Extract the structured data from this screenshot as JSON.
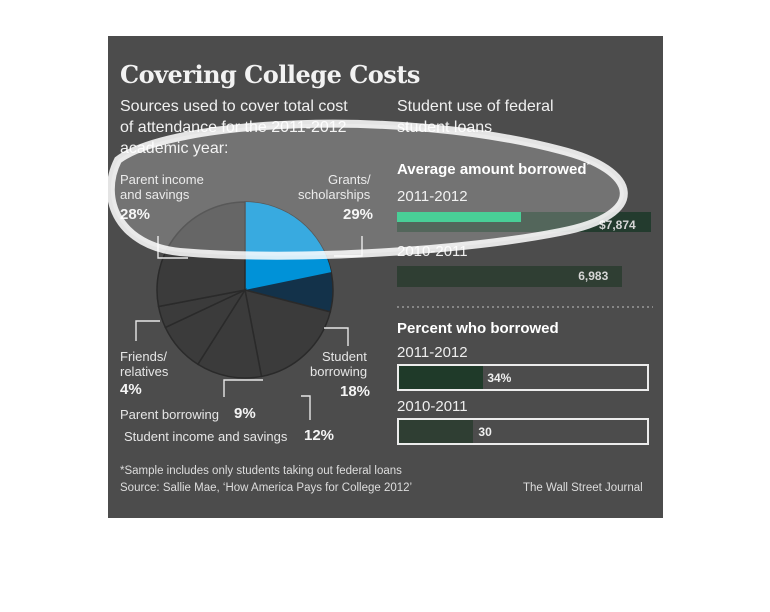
{
  "title": "Covering College Costs",
  "left_subtitle": [
    "Sources used to cover total cost",
    "of attendance for the 2011-2012",
    "academic year:"
  ],
  "right_subtitle": [
    "Student use of federal",
    "student loans"
  ],
  "colors": {
    "panel": "#4c4c4c",
    "highlight_blue": "#0092d8",
    "highlight_green": "#17c27a",
    "dark_green": "#233b2e",
    "pie_slice": "#3b3b3b",
    "slice_lines": "#2a2a2a"
  },
  "chart_data": [
    {
      "type": "pie",
      "slices": [
        {
          "label": "Grants/ scholarships",
          "value": 29,
          "value_text": "29%"
        },
        {
          "label": "Student borrowing",
          "value": 18,
          "value_text": "18%"
        },
        {
          "label": "Student income and savings",
          "value": 12,
          "value_text": "12%"
        },
        {
          "label": "Parent borrowing",
          "value": 9,
          "value_text": "9%"
        },
        {
          "label": "Friends/ relatives",
          "value": 4,
          "value_text": "4%"
        },
        {
          "label": "Parent income and savings",
          "value": 28,
          "value_text": "28%"
        }
      ],
      "highlighted_portion_of_grants": 0.75
    },
    {
      "type": "bar",
      "title": "Average amount borrowed",
      "title_marker": "*",
      "categories": [
        "2011-2012",
        "2010-2011"
      ],
      "values": [
        7874,
        6983
      ],
      "value_labels": [
        "$7,874",
        "6,983"
      ],
      "highlighted_portion_of_first": 0.49
    },
    {
      "type": "bar",
      "title": "Percent who borrowed",
      "categories": [
        "2011-2012",
        "2010-2011"
      ],
      "values": [
        34,
        30
      ],
      "value_labels": [
        "34%",
        "30"
      ],
      "xlim": [
        0,
        100
      ]
    }
  ],
  "pie_labels": {
    "parent_income": [
      "Parent income",
      "and savings"
    ],
    "grants": [
      "Grants/",
      "scholarships"
    ],
    "friends": [
      "Friends/",
      "relatives"
    ],
    "student_borrowing": [
      "Student",
      "borrowing"
    ],
    "parent_borrowing": "Parent borrowing",
    "student_income": "Student income and savings"
  },
  "footnote": [
    "*Sample includes only students taking out federal loans",
    "Source: Sallie Mae, ‘How America Pays for College 2012’"
  ],
  "credit": "The Wall Street Journal"
}
